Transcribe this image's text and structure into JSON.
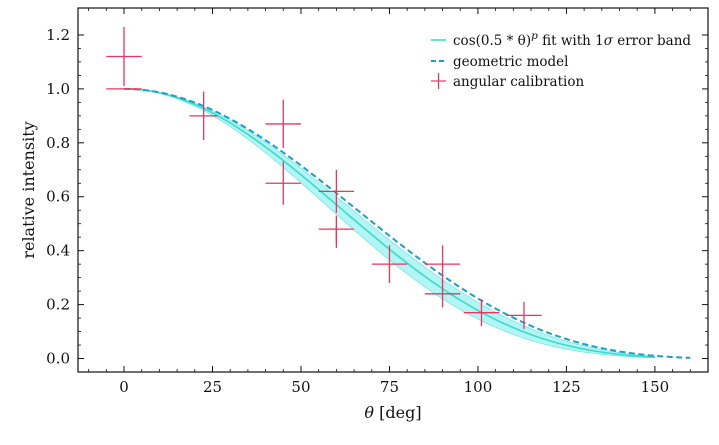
{
  "chart_data": {
    "type": "line",
    "xlabel": "θ [deg]",
    "xlabel_var": "θ",
    "xlabel_unit": "[deg]",
    "ylabel": "relative intensity",
    "xlim": [
      -13,
      165
    ],
    "ylim": [
      -0.05,
      1.3
    ],
    "x_ticks": [
      0,
      25,
      50,
      75,
      100,
      125,
      150
    ],
    "y_ticks": [
      0.0,
      0.2,
      0.4,
      0.6,
      0.8,
      1.0,
      1.2
    ],
    "x_tick_labels": [
      "0",
      "25",
      "50",
      "75",
      "100",
      "125",
      "150"
    ],
    "y_tick_labels": [
      "0.0",
      "0.2",
      "0.4",
      "0.6",
      "0.8",
      "1.0",
      "1.2"
    ],
    "legend_position": "top-right",
    "series": [
      {
        "name": "fit",
        "legend_parts": [
          "cos(0.5 * θ)",
          "p",
          " fit with 1",
          "σ",
          " error band"
        ],
        "kind": "line-band",
        "color": "#3ddbc7",
        "band_color": "#99f2f2",
        "x_max": 150,
        "p": 3.9,
        "p_low": 3.55,
        "p_high": 4.35
      },
      {
        "name": "geometric model",
        "kind": "dashed",
        "color": "#1e9ec9",
        "x_max": 160,
        "p": 3.4
      },
      {
        "name": "angular calibration",
        "kind": "errorbar",
        "color": "#e8365d",
        "points": [
          {
            "x": 0,
            "y": 1.0,
            "xerr": 5,
            "yerr": 0.0
          },
          {
            "x": 0,
            "y": 1.12,
            "xerr": 5,
            "yerr": 0.11
          },
          {
            "x": 22.5,
            "y": 0.9,
            "xerr": 4,
            "yerr": 0.09
          },
          {
            "x": 45,
            "y": 0.87,
            "xerr": 5,
            "yerr": 0.09
          },
          {
            "x": 45,
            "y": 0.65,
            "xerr": 5,
            "yerr": 0.08
          },
          {
            "x": 60,
            "y": 0.62,
            "xerr": 5,
            "yerr": 0.08
          },
          {
            "x": 60,
            "y": 0.48,
            "xerr": 5,
            "yerr": 0.05
          },
          {
            "x": 60,
            "y": 0.45,
            "xerr": 0,
            "yerr": 0.04
          },
          {
            "x": 75,
            "y": 0.35,
            "xerr": 5,
            "yerr": 0.07
          },
          {
            "x": 90,
            "y": 0.35,
            "xerr": 5,
            "yerr": 0.07
          },
          {
            "x": 90,
            "y": 0.24,
            "xerr": 5,
            "yerr": 0.05
          },
          {
            "x": 101,
            "y": 0.17,
            "xerr": 5,
            "yerr": 0.05
          },
          {
            "x": 113,
            "y": 0.16,
            "xerr": 5,
            "yerr": 0.05
          }
        ]
      }
    ]
  }
}
